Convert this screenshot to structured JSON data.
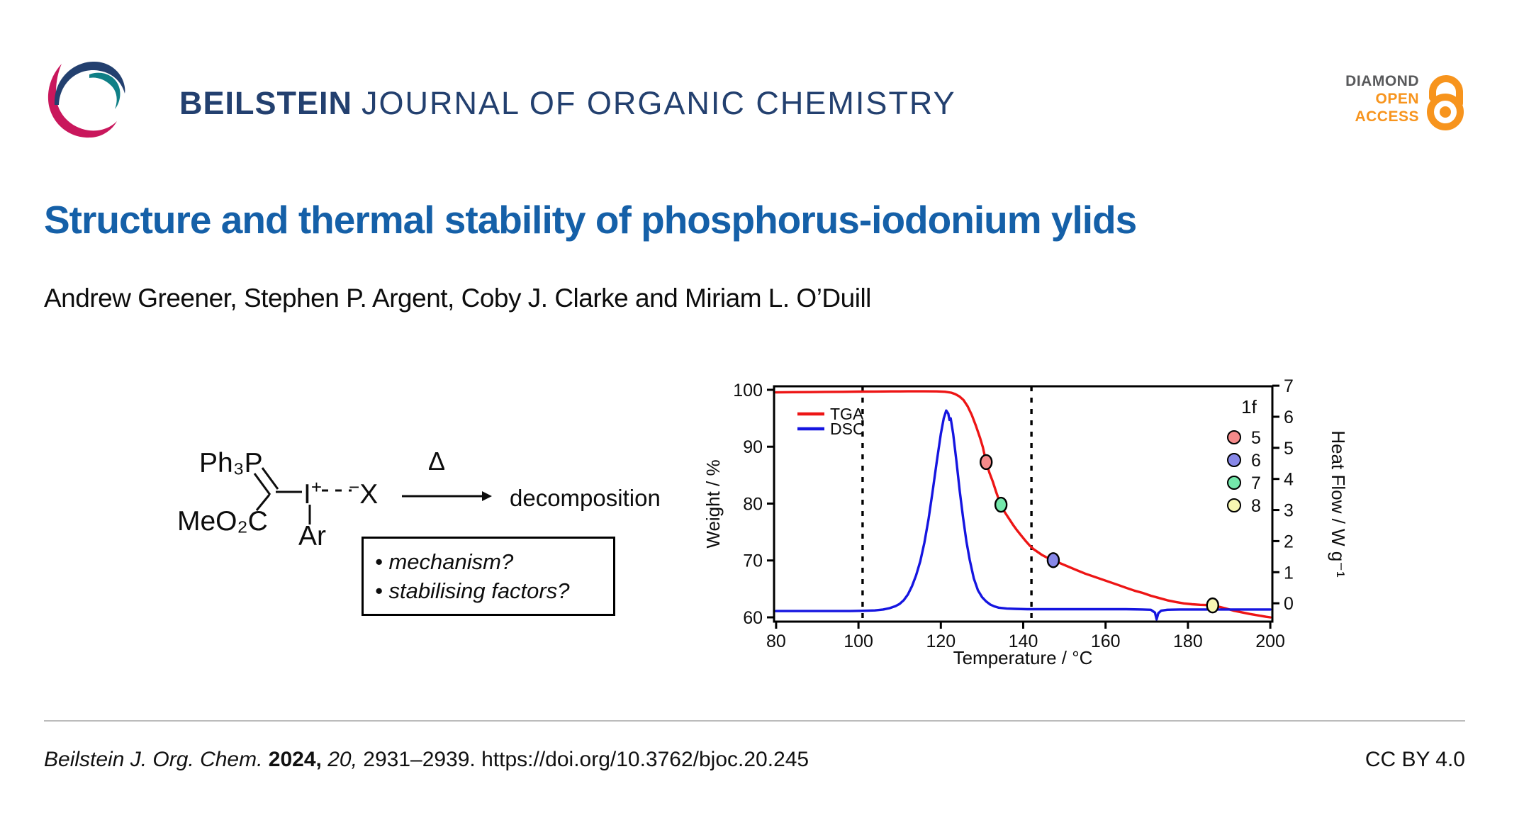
{
  "header": {
    "journal_bold": "BEILSTEIN",
    "journal_rest": "JOURNAL OF ORGANIC CHEMISTRY",
    "open_access": {
      "line1": "DIAMOND",
      "line2": "OPEN",
      "line3": "ACCESS"
    },
    "colors": {
      "navy": "#23406f",
      "teal": "#0f7f86",
      "pink": "#c9175c",
      "orange": "#f7941d",
      "gray": "#58595b"
    }
  },
  "title": "Structure and thermal stability of phosphorus-iodonium ylids",
  "authors": "Andrew Greener, Stephen P. Argent, Coby J. Clarke and Miriam L. O’Duill",
  "scheme": {
    "phosphonium_label": "Ph₃P",
    "ester_label": "MeO₂C",
    "iodine_label": "I",
    "iodine_charge": "+",
    "counterion_charge": "−",
    "counterion_label": "X",
    "aryl_label": "Ar",
    "delta_label": "Δ",
    "product_label": "decomposition",
    "questions": [
      "• mechanism?",
      "• stabilising factors?"
    ]
  },
  "chart_data": {
    "type": "line",
    "title": "",
    "xlabel": "Temperature / °C",
    "ylabel_left": "Weight / %",
    "ylabel_right": "Heat Flow / W g⁻¹",
    "xlim": [
      79.5,
      200.5
    ],
    "xticks": [
      80,
      100,
      120,
      140,
      160,
      180,
      200
    ],
    "ylim_left": [
      59.25,
      100.62
    ],
    "yticks_left": [
      60,
      70,
      80,
      90,
      100
    ],
    "ylim_right": [
      -0.59,
      6.98
    ],
    "yticks_right": [
      0,
      1,
      2,
      3,
      4,
      5,
      6,
      7
    ],
    "grid": false,
    "dashed_lines_x": [
      101,
      142
    ],
    "legend_position": "upper-left-inside",
    "legend": [
      {
        "name": "TGA",
        "color": "#ed1515"
      },
      {
        "name": "DSC",
        "color": "#1515e0"
      }
    ],
    "marker_legend": {
      "title": "1f",
      "entries": [
        {
          "label": "5",
          "color": "#f58a8a"
        },
        {
          "label": "6",
          "color": "#8888e8"
        },
        {
          "label": "7",
          "color": "#74e8ab"
        },
        {
          "label": "8",
          "color": "#f6f6b2"
        }
      ]
    },
    "series": [
      {
        "name": "TGA",
        "axis": "left",
        "color": "#ed1515",
        "points": [
          [
            80,
            99.55
          ],
          [
            84,
            99.58
          ],
          [
            88,
            99.6
          ],
          [
            92,
            99.63
          ],
          [
            96,
            99.65
          ],
          [
            100,
            99.68
          ],
          [
            104,
            99.7
          ],
          [
            108,
            99.72
          ],
          [
            112,
            99.74
          ],
          [
            116,
            99.74
          ],
          [
            119,
            99.72
          ],
          [
            121,
            99.66
          ],
          [
            122.5,
            99.5
          ],
          [
            123.5,
            99.25
          ],
          [
            124.5,
            98.85
          ],
          [
            125.5,
            98.2
          ],
          [
            126.5,
            97.1
          ],
          [
            127.5,
            95.6
          ],
          [
            128.5,
            93.7
          ],
          [
            129.5,
            91.6
          ],
          [
            130.2,
            89.9
          ],
          [
            131,
            87.3
          ],
          [
            131.8,
            85.4
          ],
          [
            132.6,
            83.9
          ],
          [
            133.5,
            81.9
          ],
          [
            134.5,
            79.9
          ],
          [
            135.5,
            78.5
          ],
          [
            136.5,
            77.4
          ],
          [
            137.5,
            76.3
          ],
          [
            138.5,
            75.3
          ],
          [
            139.5,
            74.4
          ],
          [
            140.5,
            73.5
          ],
          [
            141.5,
            72.7
          ],
          [
            142.5,
            72.0
          ],
          [
            143.5,
            71.5
          ],
          [
            144.5,
            71.0
          ],
          [
            145.5,
            70.6
          ],
          [
            146.5,
            70.3
          ],
          [
            147.5,
            70.0
          ],
          [
            149,
            69.5
          ],
          [
            151,
            68.9
          ],
          [
            153,
            68.3
          ],
          [
            155,
            67.7
          ],
          [
            157,
            67.2
          ],
          [
            159,
            66.7
          ],
          [
            161,
            66.2
          ],
          [
            163,
            65.7
          ],
          [
            165,
            65.2
          ],
          [
            167,
            64.7
          ],
          [
            169,
            64.3
          ],
          [
            171,
            63.8
          ],
          [
            173,
            63.4
          ],
          [
            175,
            63.0
          ],
          [
            177,
            62.7
          ],
          [
            179,
            62.45
          ],
          [
            181,
            62.3
          ],
          [
            183,
            62.2
          ],
          [
            185,
            62.15
          ],
          [
            187,
            61.95
          ],
          [
            189,
            61.6
          ],
          [
            191,
            61.2
          ],
          [
            193,
            60.9
          ],
          [
            195,
            60.6
          ],
          [
            197,
            60.35
          ],
          [
            199,
            60.1
          ],
          [
            200,
            60.0
          ]
        ]
      },
      {
        "name": "DSC",
        "axis": "right",
        "color": "#1515e0",
        "points": [
          [
            80,
            -0.25
          ],
          [
            86,
            -0.25
          ],
          [
            92,
            -0.25
          ],
          [
            98,
            -0.25
          ],
          [
            102,
            -0.24
          ],
          [
            104,
            -0.23
          ],
          [
            106,
            -0.2
          ],
          [
            107.5,
            -0.16
          ],
          [
            109,
            -0.09
          ],
          [
            110,
            -0.02
          ],
          [
            111,
            0.1
          ],
          [
            112,
            0.28
          ],
          [
            113,
            0.55
          ],
          [
            114,
            0.9
          ],
          [
            115,
            1.35
          ],
          [
            116,
            1.95
          ],
          [
            117,
            2.7
          ],
          [
            118,
            3.6
          ],
          [
            119,
            4.55
          ],
          [
            120,
            5.45
          ],
          [
            120.7,
            5.95
          ],
          [
            121.3,
            6.2
          ],
          [
            121.8,
            6.1
          ],
          [
            122.1,
            5.9
          ],
          [
            122.4,
            5.95
          ],
          [
            123,
            5.45
          ],
          [
            123.8,
            4.55
          ],
          [
            124.6,
            3.6
          ],
          [
            125.4,
            2.75
          ],
          [
            126.2,
            2.0
          ],
          [
            127,
            1.4
          ],
          [
            128,
            0.8
          ],
          [
            129,
            0.42
          ],
          [
            130,
            0.2
          ],
          [
            131,
            0.06
          ],
          [
            132,
            -0.04
          ],
          [
            133,
            -0.1
          ],
          [
            134,
            -0.14
          ],
          [
            136,
            -0.17
          ],
          [
            138,
            -0.18
          ],
          [
            141,
            -0.19
          ],
          [
            145,
            -0.19
          ],
          [
            150,
            -0.19
          ],
          [
            155,
            -0.19
          ],
          [
            160,
            -0.19
          ],
          [
            165,
            -0.19
          ],
          [
            169,
            -0.2
          ],
          [
            171,
            -0.21
          ],
          [
            172,
            -0.3
          ],
          [
            172.4,
            -0.52
          ],
          [
            172.8,
            -0.32
          ],
          [
            173.5,
            -0.24
          ],
          [
            175,
            -0.21
          ],
          [
            178,
            -0.2
          ],
          [
            182,
            -0.2
          ],
          [
            187,
            -0.2
          ],
          [
            192,
            -0.2
          ],
          [
            197,
            -0.2
          ],
          [
            200,
            -0.2
          ]
        ]
      }
    ],
    "markers": [
      {
        "label": "5",
        "color": "#f58a8a",
        "x": 131,
        "y": 87.3
      },
      {
        "label": "7",
        "color": "#74e8ab",
        "x": 134.6,
        "y": 79.8
      },
      {
        "label": "6",
        "color": "#8888e8",
        "x": 147.3,
        "y": 70.05
      },
      {
        "label": "8",
        "color": "#f6f6b2",
        "x": 186,
        "y": 62.1
      }
    ]
  },
  "footer": {
    "citation_journal": "Beilstein J. Org. Chem.",
    "citation_year": "2024,",
    "citation_volume": "20,",
    "citation_pages": "2931–2939.",
    "citation_doi": "https://doi.org/10.3762/bjoc.20.245",
    "license": "CC BY 4.0"
  }
}
